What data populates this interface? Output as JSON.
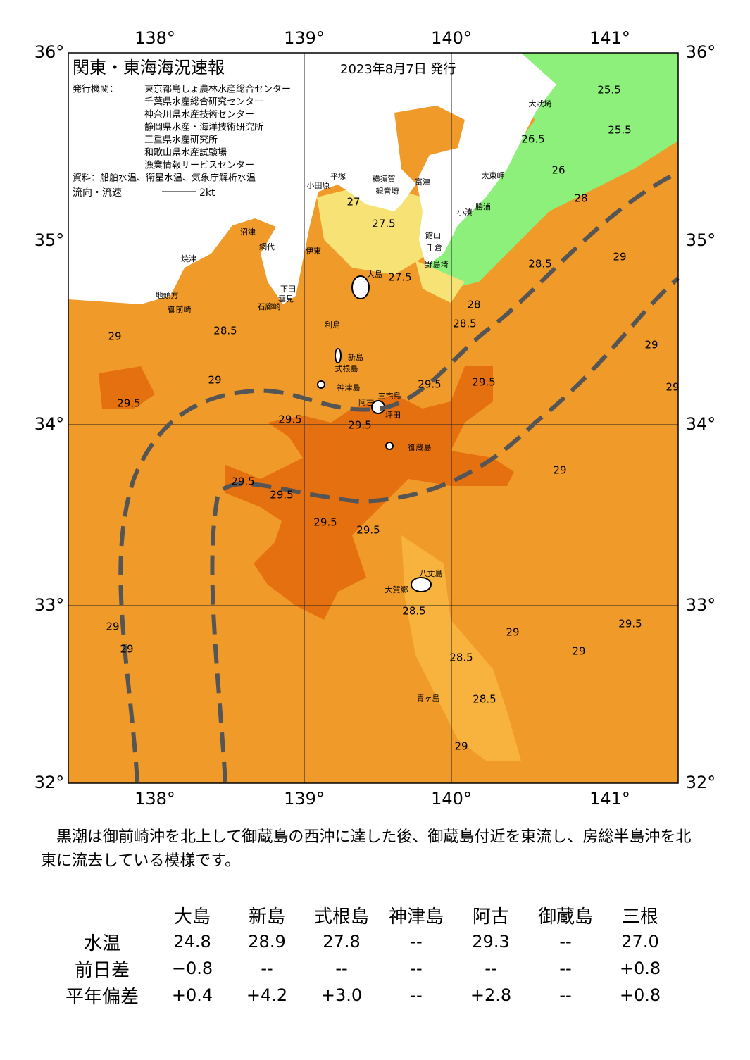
{
  "map": {
    "title": "関東・東海海況速報",
    "date": "2023年8月7日 発行",
    "issuer_label": "発行機関：",
    "issuers": [
      "東京都島しょ農林水産総合センター",
      "千葉県水産総合研究センター",
      "神奈川県水産技術センター",
      "静岡県水産・海洋技術研究所",
      "三重県水産研究所",
      "和歌山県水産試験場",
      "漁業情報サービスセンター"
    ],
    "sources": "資料：船舶水温、衛星水温、気象庁解析水温",
    "flow_label": "流向・流速",
    "flow_scale": "2kt",
    "lon_labels": [
      "138°",
      "139°",
      "140°",
      "141°"
    ],
    "lat_labels": [
      "36°",
      "35°",
      "34°",
      "33°",
      "32°"
    ],
    "places": [
      "大島",
      "利島",
      "新島",
      "式根島",
      "神津島",
      "三宅島",
      "阿古",
      "坪田",
      "御蔵島",
      "八丈島",
      "大賀郷",
      "青ヶ島",
      "小田原",
      "平塚",
      "横須賀",
      "観音埼",
      "富津",
      "館山",
      "千倉",
      "野島埼",
      "小湊",
      "勝浦",
      "太東岬",
      "大吠埼",
      "伊東",
      "網代",
      "沼津",
      "焼津",
      "御前崎",
      "地頭方",
      "石廊崎",
      "下田",
      "雲見"
    ],
    "contours": [
      "25.5",
      "25.5",
      "26",
      "26.5",
      "27",
      "27.5",
      "27.5",
      "28",
      "28",
      "28.5",
      "28.5",
      "28.5",
      "28.5",
      "28.5",
      "28.5",
      "29",
      "29",
      "29",
      "29",
      "29",
      "29",
      "29",
      "29",
      "29",
      "29",
      "29",
      "29.5",
      "29.5",
      "29.5",
      "29.5",
      "29.5",
      "29.5",
      "29.5",
      "29.5",
      "29.5",
      "29.5"
    ]
  },
  "summary": "黒潮は御前崎沖を北上して御蔵島の西沖に達した後、御蔵島付近を東流し、房総半島沖を北東に流去している模様です。",
  "table": {
    "columns": [
      "大島",
      "新島",
      "式根島",
      "神津島",
      "阿古",
      "御蔵島",
      "三根"
    ],
    "rows": [
      {
        "label": "水温",
        "values": [
          "24.8",
          "28.9",
          "27.8",
          "--",
          "29.3",
          "--",
          "27.0"
        ]
      },
      {
        "label": "前日差",
        "values": [
          "−0.8",
          "--",
          "--",
          "--",
          "--",
          "--",
          "+0.8"
        ]
      },
      {
        "label": "平年偏差",
        "values": [
          "+0.4",
          "+4.2",
          "+3.0",
          "--",
          "+2.8",
          "--",
          "+0.8"
        ]
      }
    ]
  }
}
